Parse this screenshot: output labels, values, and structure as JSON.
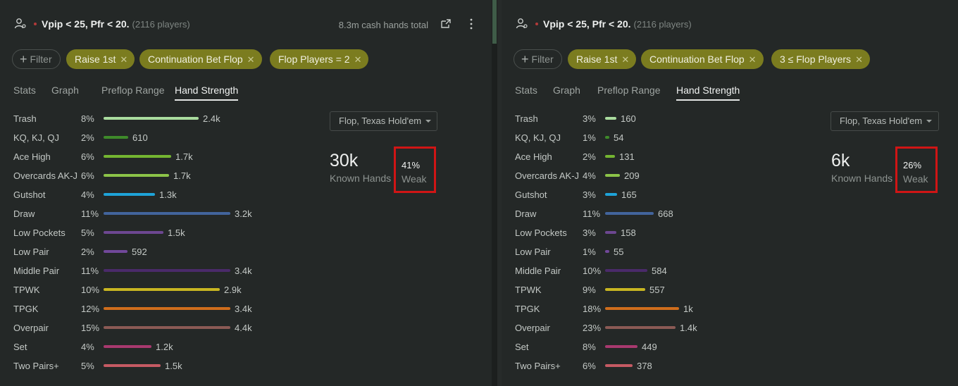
{
  "left": {
    "title": "Vpip < 25, Pfr < 20.",
    "players": "(2116 players)",
    "hands_total": "8.3m cash hands total",
    "filter_label": "Filter",
    "chips": [
      "Raise 1st",
      "Continuation Bet Flop",
      "Flop Players = 2"
    ],
    "tabs": [
      "Stats",
      "Graph",
      "Preflop Range",
      "Hand Strength"
    ],
    "active_tab": "Hand Strength",
    "select": "Flop, Texas Hold'em",
    "known_num": "30k",
    "known_label": "Known Hands",
    "weak_pct": "41%",
    "weak_label": "Weak",
    "rows": [
      {
        "name": "Trash",
        "pct": "8%",
        "val": "2.4k",
        "fraction": 0.54,
        "color": "#a9dc9e"
      },
      {
        "name": "KQ, KJ, QJ",
        "pct": "2%",
        "val": "610",
        "fraction": 0.14,
        "color": "#3e8a2a"
      },
      {
        "name": "Ace High",
        "pct": "6%",
        "val": "1.7k",
        "fraction": 0.385,
        "color": "#74b531"
      },
      {
        "name": "Overcards AK-J",
        "pct": "6%",
        "val": "1.7k",
        "fraction": 0.373,
        "color": "#8cc448"
      },
      {
        "name": "Gutshot",
        "pct": "4%",
        "val": "1.3k",
        "fraction": 0.29,
        "color": "#1ea3d8"
      },
      {
        "name": "Draw",
        "pct": "11%",
        "val": "3.2k",
        "fraction": 0.72,
        "color": "#42649c"
      },
      {
        "name": "Low Pockets",
        "pct": "5%",
        "val": "1.5k",
        "fraction": 0.34,
        "color": "#6d4791"
      },
      {
        "name": "Low Pair",
        "pct": "2%",
        "val": "592",
        "fraction": 0.135,
        "color": "#71489a"
      },
      {
        "name": "Middle Pair",
        "pct": "11%",
        "val": "3.4k",
        "fraction": 0.72,
        "color": "#4a2a6a"
      },
      {
        "name": "TPWK",
        "pct": "10%",
        "val": "2.9k",
        "fraction": 0.66,
        "color": "#c8b621"
      },
      {
        "name": "TPGK",
        "pct": "12%",
        "val": "3.4k",
        "fraction": 0.72,
        "color": "#cf6d1c"
      },
      {
        "name": "Overpair",
        "pct": "15%",
        "val": "4.4k",
        "fraction": 0.72,
        "color": "#8b5a55"
      },
      {
        "name": "Set",
        "pct": "4%",
        "val": "1.2k",
        "fraction": 0.27,
        "color": "#a8396f"
      },
      {
        "name": "Two Pairs+",
        "pct": "5%",
        "val": "1.5k",
        "fraction": 0.325,
        "color": "#c55a63"
      }
    ]
  },
  "right": {
    "title": "Vpip < 25, Pfr < 20.",
    "players": "(2116 players)",
    "filter_label": "Filter",
    "chips": [
      "Raise 1st",
      "Continuation Bet Flop",
      "3 ≤ Flop Players"
    ],
    "tabs": [
      "Stats",
      "Graph",
      "Preflop Range",
      "Hand Strength"
    ],
    "active_tab": "Hand Strength",
    "select": "Flop, Texas Hold'em",
    "known_num": "6k",
    "known_label": "Known Hands",
    "weak_pct": "26%",
    "weak_label": "Weak",
    "rows": [
      {
        "name": "Trash",
        "pct": "3%",
        "val": "160",
        "fraction": 0.065,
        "color": "#a9dc9e"
      },
      {
        "name": "KQ, KJ, QJ",
        "pct": "1%",
        "val": "54",
        "fraction": 0.018,
        "color": "#3e8a2a"
      },
      {
        "name": "Ace High",
        "pct": "2%",
        "val": "131",
        "fraction": 0.055,
        "color": "#74b531"
      },
      {
        "name": "Overcards AK-J",
        "pct": "4%",
        "val": "209",
        "fraction": 0.085,
        "color": "#8cc448"
      },
      {
        "name": "Gutshot",
        "pct": "3%",
        "val": "165",
        "fraction": 0.068,
        "color": "#1ea3d8"
      },
      {
        "name": "Draw",
        "pct": "11%",
        "val": "668",
        "fraction": 0.275,
        "color": "#42649c"
      },
      {
        "name": "Low Pockets",
        "pct": "3%",
        "val": "158",
        "fraction": 0.065,
        "color": "#6d4791"
      },
      {
        "name": "Low Pair",
        "pct": "1%",
        "val": "55",
        "fraction": 0.023,
        "color": "#71489a"
      },
      {
        "name": "Middle Pair",
        "pct": "10%",
        "val": "584",
        "fraction": 0.24,
        "color": "#4a2a6a"
      },
      {
        "name": "TPWK",
        "pct": "9%",
        "val": "557",
        "fraction": 0.228,
        "color": "#c8b621"
      },
      {
        "name": "TPGK",
        "pct": "18%",
        "val": "1k",
        "fraction": 0.42,
        "color": "#cf6d1c"
      },
      {
        "name": "Overpair",
        "pct": "23%",
        "val": "1.4k",
        "fraction": 0.4,
        "color": "#8b5a55"
      },
      {
        "name": "Set",
        "pct": "8%",
        "val": "449",
        "fraction": 0.183,
        "color": "#a8396f"
      },
      {
        "name": "Two Pairs+",
        "pct": "6%",
        "val": "378",
        "fraction": 0.155,
        "color": "#c55a63"
      }
    ]
  },
  "icons": {
    "user": "user-settings-icon",
    "share": "export-icon",
    "more": "more-vertical-icon",
    "close": "close-icon",
    "plus": "plus-icon",
    "caret": "caret-down-icon"
  },
  "colors": {
    "chip_active": "#7b7c1f",
    "highlight_border": "#d01515",
    "background": "#242827"
  }
}
